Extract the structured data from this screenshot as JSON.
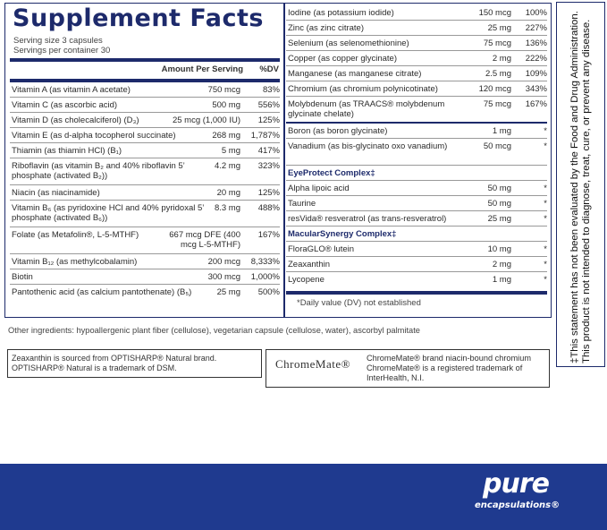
{
  "title": "Supplement Facts",
  "serving_size": "Serving size  3 capsules",
  "servings_per_container": "Servings per container  30",
  "header": {
    "amount": "Amount Per Serving",
    "dv": "%DV"
  },
  "left_rows": [
    {
      "name": "Vitamin A (as vitamin A acetate)",
      "amount": "750 mcg",
      "dv": "83%"
    },
    {
      "name": "Vitamin C (as ascorbic acid)",
      "amount": "500 mg",
      "dv": "556%"
    },
    {
      "name": "Vitamin D (as cholecalciferol) (D₃)",
      "amount": "25 mcg (1,000 IU)",
      "dv": "125%"
    },
    {
      "name": "Vitamin E (as d-alpha tocopherol succinate)",
      "amount": "268 mg",
      "dv": "1,787%"
    },
    {
      "name": "Thiamin (as thiamin HCl) (B₁)",
      "amount": "5 mg",
      "dv": "417%"
    },
    {
      "name": "Riboflavin (as vitamin B₂ and 40% riboflavin 5’ phosphate (activated B₂))",
      "amount": "4.2 mg",
      "dv": "323%",
      "lines": 2
    },
    {
      "name": "Niacin (as niacinamide)",
      "amount": "20 mg",
      "dv": "125%"
    },
    {
      "name": "Vitamin B₆ (as pyridoxine HCl and 40% pyridoxal 5’ phosphate (activated B₆))",
      "amount": "8.3 mg",
      "dv": "488%",
      "lines": 2
    },
    {
      "name": "Folate (as Metafolin®, L-5-MTHF)",
      "amount": "667 mcg DFE (400 mcg L-5-MTHF)",
      "dv": "167%",
      "lines": 2
    },
    {
      "name": "Vitamin B₁₂ (as methylcobalamin)",
      "amount": "200 mcg",
      "dv": "8,333%"
    },
    {
      "name": "Biotin",
      "amount": "300 mcg",
      "dv": "1,000%"
    },
    {
      "name": "Pantothenic acid (as calcium pantothenate) (B₅)",
      "amount": "25 mg",
      "dv": "500%",
      "lines": 2
    }
  ],
  "right_rows": [
    {
      "name": "Iodine (as potassium iodide)",
      "amount": "150 mcg",
      "dv": "100%"
    },
    {
      "name": "Zinc (as zinc citrate)",
      "amount": "25 mg",
      "dv": "227%"
    },
    {
      "name": "Selenium (as selenomethionine)",
      "amount": "75 mcg",
      "dv": "136%"
    },
    {
      "name": "Copper (as copper glycinate)",
      "amount": "2 mg",
      "dv": "222%"
    },
    {
      "name": "Manganese (as manganese citrate)",
      "amount": "2.5 mg",
      "dv": "109%"
    },
    {
      "name": "Chromium (as chromium polynicotinate)",
      "amount": "120 mcg",
      "dv": "343%"
    },
    {
      "name": "Molybdenum (as TRAACS® molybdenum glycinate chelate)",
      "amount": "75 mcg",
      "dv": "167%",
      "lines": 2,
      "thick": true
    },
    {
      "name": "Boron (as boron glycinate)",
      "amount": "1 mg",
      "dv": "*"
    },
    {
      "name": "Vanadium (as bis-glycinato oxo vanadium)",
      "amount": "50 mcg",
      "dv": "*",
      "lines": 2
    },
    {
      "name": "EyeProtect Complex‡",
      "section": true
    },
    {
      "name": "Alpha lipoic acid",
      "amount": "50 mg",
      "dv": "*"
    },
    {
      "name": "Taurine",
      "amount": "50 mg",
      "dv": "*"
    },
    {
      "name": "resVida® resveratrol (as trans-resveratrol)",
      "amount": "25 mg",
      "dv": "*"
    },
    {
      "name": "MacularSynergy Complex‡",
      "section": true
    },
    {
      "name": "FloraGLO® lutein",
      "amount": "10 mg",
      "dv": "*"
    },
    {
      "name": "Zeaxanthin",
      "amount": "2 mg",
      "dv": "*"
    },
    {
      "name": "Lycopene",
      "amount": "1 mg",
      "dv": "*"
    }
  ],
  "footnote": "*Daily value (DV) not established",
  "disclaimer": "‡This statement has not been evaluated by the Food and Drug Administration. This product is not intended to diagnose, treat, cure, or prevent any disease.",
  "other_ingredients": "Other ingredients: hypoallergenic plant fiber (cellulose), vegetarian capsule (cellulose, water), ascorbyl palmitate",
  "optisharp_note": "Zeaxanthin is sourced from OPTISHARP® Natural brand. OPTISHARP® Natural is a trademark of DSM.",
  "chromemate_logo": "ChromeMate®",
  "chromemate_note": "ChromeMate® brand niacin-bound chromium ChromeMate® is a registered trademark of InterHealth, N.I.",
  "brand": {
    "line1": "pure",
    "line2": "encapsulations®"
  },
  "colors": {
    "navy": "#1d2a6b",
    "band": "#1f3a8f"
  }
}
